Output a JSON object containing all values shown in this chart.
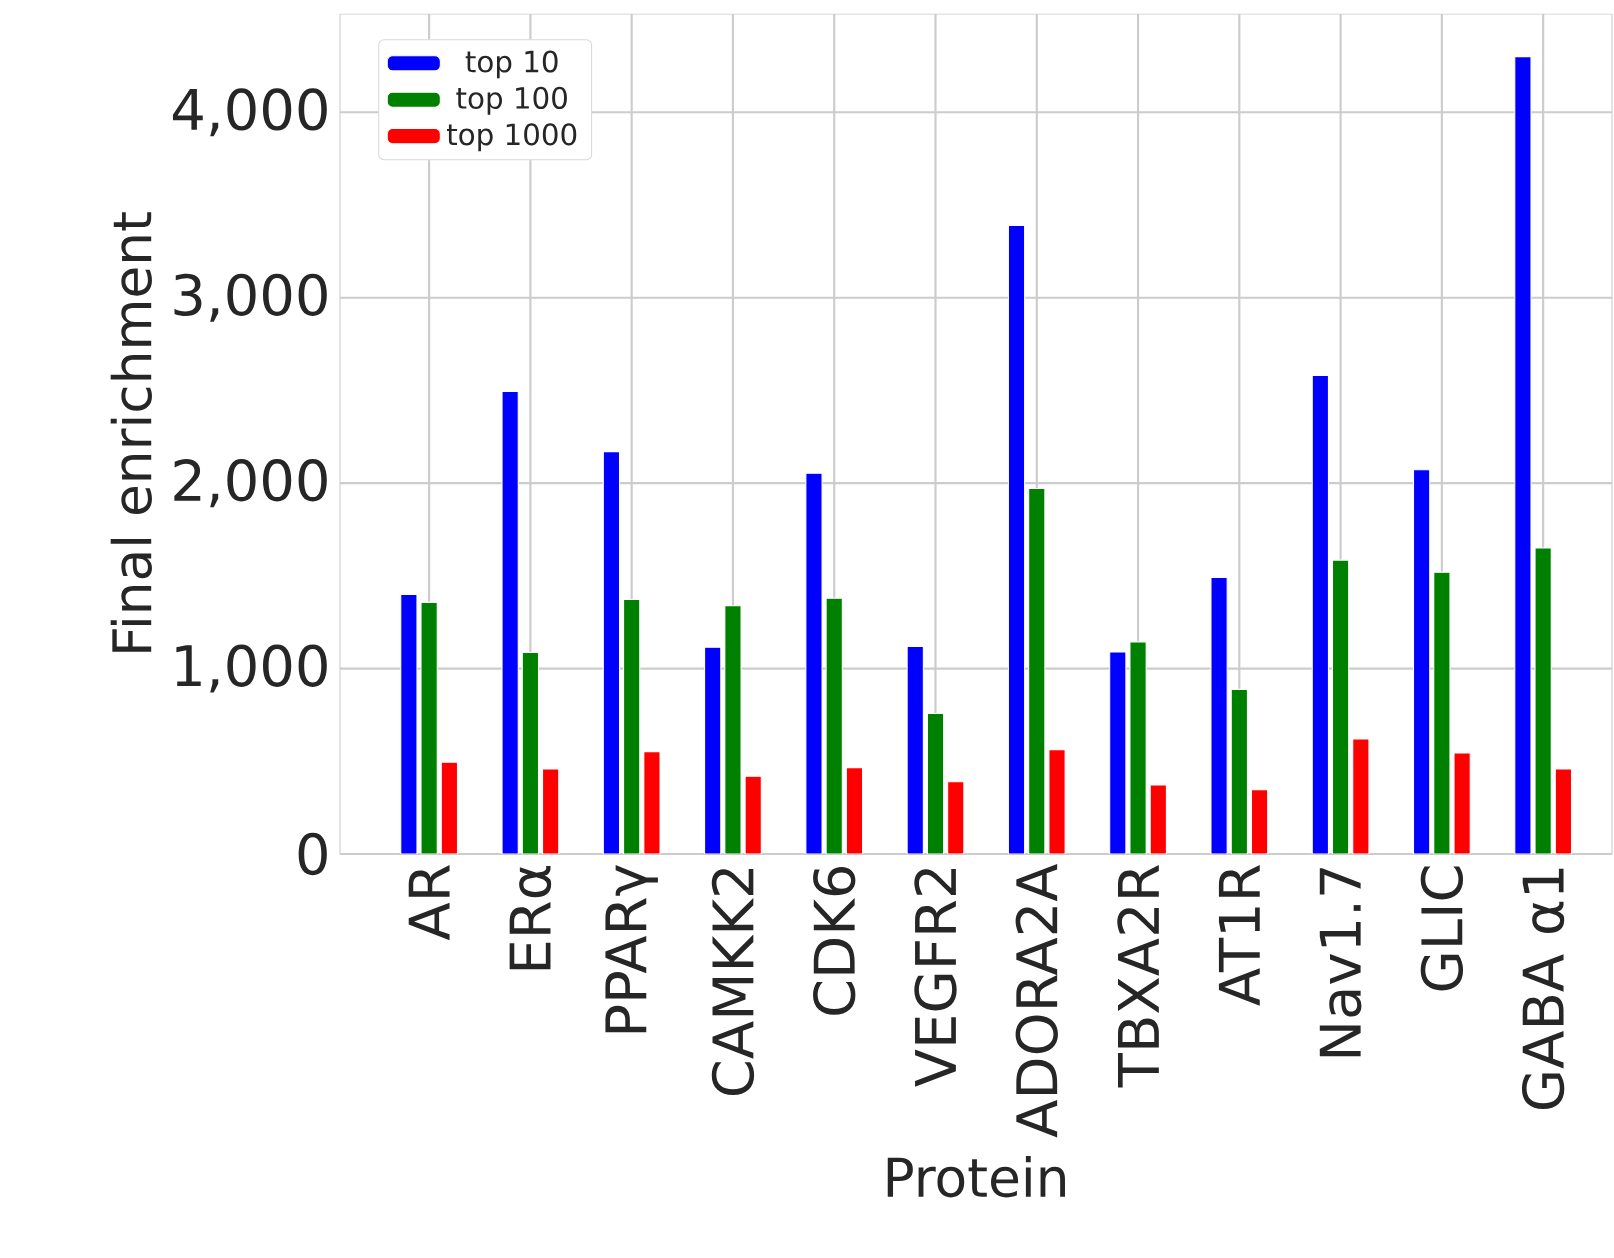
{
  "chart_data": {
    "type": "bar",
    "xlabel": "Protein",
    "ylabel": "Final enrichment",
    "categories": [
      "AR",
      "ERα",
      "PPARγ",
      "CAMKK2",
      "CDK6",
      "VEGFR2",
      "ADORA2A",
      "TBXA2R",
      "AT1R",
      "Nav1.7",
      "GLIC",
      "GABA α1"
    ],
    "series": [
      {
        "name": "top 10",
        "color": "#0000ff",
        "values": [
          1400,
          2495,
          2170,
          1115,
          2054,
          1119,
          3390,
          1090,
          1491,
          2581,
          2072,
          4300
        ]
      },
      {
        "name": "top 100",
        "color": "#008000",
        "values": [
          1357,
          1087,
          1372,
          1339,
          1379,
          758,
          1971,
          1144,
          888,
          1585,
          1520,
          1650
        ]
      },
      {
        "name": "top 1000",
        "color": "#ff0000",
        "values": [
          495,
          458,
          552,
          419,
          466,
          390,
          563,
          372,
          347,
          621,
          545,
          458
        ]
      }
    ],
    "ylim": [
      0,
      4530
    ],
    "yticks": [
      {
        "value": 0,
        "label": "0"
      },
      {
        "value": 1000,
        "label": "1,000"
      },
      {
        "value": 2000,
        "label": "2,000"
      },
      {
        "value": 3000,
        "label": "3,000"
      },
      {
        "value": 4000,
        "label": "4,000"
      }
    ],
    "grid": true,
    "legend": "top left"
  }
}
